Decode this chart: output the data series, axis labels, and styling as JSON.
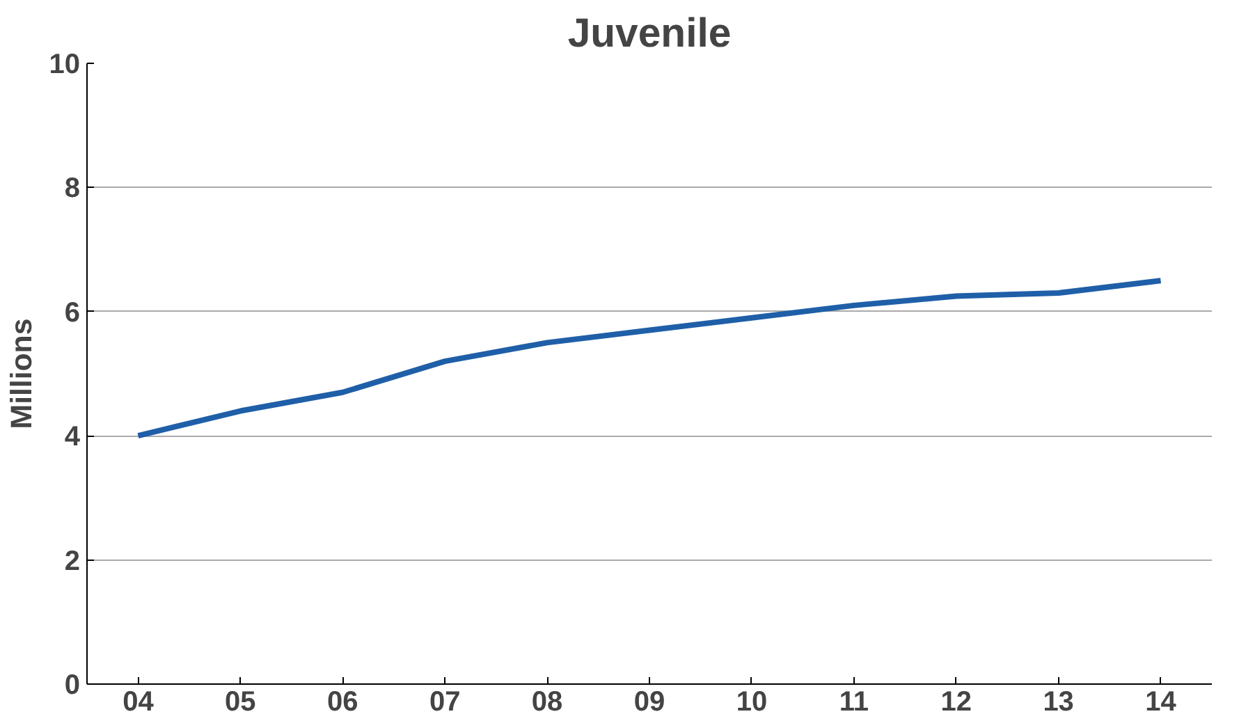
{
  "chart_data": {
    "type": "line",
    "title": "Juvenile",
    "ylabel": "Millions",
    "categories": [
      "04",
      "05",
      "06",
      "07",
      "08",
      "09",
      "10",
      "11",
      "12",
      "13",
      "14"
    ],
    "series": [
      {
        "color": "#1f5fa8",
        "values": [
          4.0,
          4.4,
          4.7,
          5.2,
          5.5,
          5.7,
          5.9,
          6.1,
          6.25,
          6.3,
          6.5
        ]
      }
    ],
    "ylim": [
      0,
      10
    ],
    "yticks": [
      0,
      2,
      4,
      6,
      8,
      10
    ],
    "grid": "y",
    "marker": "none",
    "line_style": "solid"
  }
}
